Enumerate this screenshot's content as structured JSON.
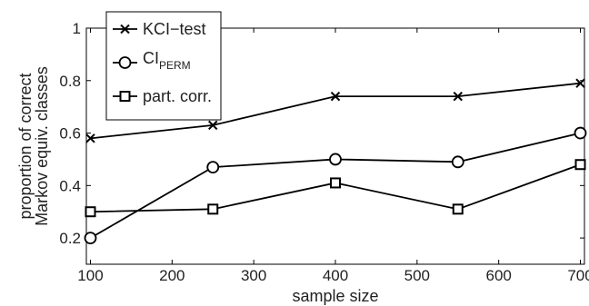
{
  "chart_data": {
    "type": "line",
    "title": "",
    "xlabel": "sample size",
    "ylabel_lines": [
      "proportion of correct",
      "Markov equiv. classes"
    ],
    "xlim": [
      95,
      705
    ],
    "ylim": [
      0.1,
      1.0
    ],
    "xticks": [
      100,
      200,
      300,
      400,
      500,
      600,
      700
    ],
    "yticks": [
      0.2,
      0.4,
      0.6,
      0.8,
      1.0
    ],
    "xtick_labels": [
      "100",
      "200",
      "300",
      "400",
      "500",
      "600",
      "700"
    ],
    "ytick_labels": [
      "0.2",
      "0.4",
      "0.6",
      "0.8",
      "1"
    ],
    "x": [
      100,
      250,
      400,
      550,
      700
    ],
    "series": [
      {
        "name": "KCI−test",
        "marker": "x",
        "values": [
          0.58,
          0.63,
          0.74,
          0.74,
          0.79
        ]
      },
      {
        "name": "CI",
        "name_subscript": "PERM",
        "marker": "circle",
        "values": [
          0.2,
          0.47,
          0.5,
          0.49,
          0.6
        ]
      },
      {
        "name": "part. corr.",
        "marker": "square",
        "values": [
          0.3,
          0.31,
          0.41,
          0.31,
          0.48
        ]
      }
    ],
    "legend_position": "top-left",
    "grid": false,
    "line_color": "#000000"
  }
}
